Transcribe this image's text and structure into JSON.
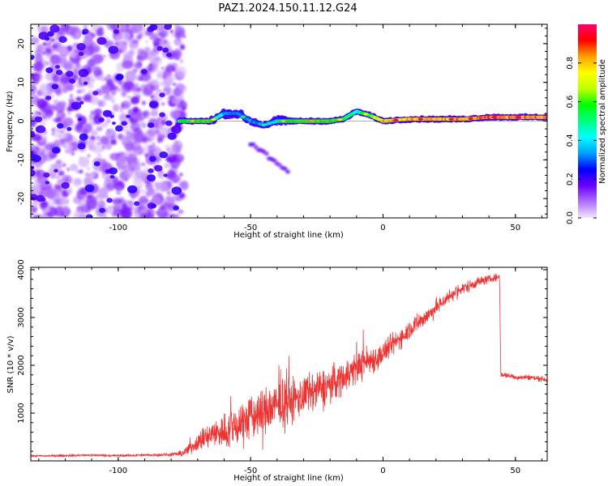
{
  "figure_title": "PAZ1.2024.150.11.12.G24",
  "chart_data": [
    {
      "type": "heatmap",
      "xlabel": "Height of straight line (km)",
      "ylabel": "Frequency (Hz)",
      "xlim": [
        -133,
        62
      ],
      "ylim": [
        -25,
        25
      ],
      "xticks": [
        -100,
        -50,
        0,
        50
      ],
      "yticks": [
        -20,
        -10,
        0,
        10,
        20
      ],
      "colorbar": {
        "label": "Normalized spectral amplitude",
        "ticks": [
          0.0,
          0.2,
          0.4,
          0.6,
          0.8
        ],
        "range": [
          0,
          1
        ],
        "colormap": [
          "#f2e6ff",
          "#b070ff",
          "#6a00ff",
          "#0000ff",
          "#00a0ff",
          "#00ffff",
          "#00ff80",
          "#00ff00",
          "#c0ff00",
          "#ffff00",
          "#ffa000",
          "#ff0000",
          "#ff006e"
        ]
      },
      "noise_region": {
        "x_range": [
          -133,
          -77
        ],
        "typical_amplitude": 0.1
      },
      "ridge": [
        {
          "x": -77,
          "freq": 0.0,
          "amp": 0.55
        },
        {
          "x": -65,
          "freq": 0.0,
          "amp": 0.6
        },
        {
          "x": -60,
          "freq": 2.0,
          "amp": 0.35
        },
        {
          "x": -55,
          "freq": 2.0,
          "amp": 0.3
        },
        {
          "x": -50,
          "freq": 0.0,
          "amp": 0.35
        },
        {
          "x": -45,
          "freq": -1.0,
          "amp": 0.3
        },
        {
          "x": -40,
          "freq": 0.0,
          "amp": 0.45
        },
        {
          "x": -35,
          "freq": 0.0,
          "amp": 0.55
        },
        {
          "x": -30,
          "freq": 0.0,
          "amp": 0.6
        },
        {
          "x": -20,
          "freq": 0.0,
          "amp": 0.6
        },
        {
          "x": -15,
          "freq": 0.5,
          "amp": 0.55
        },
        {
          "x": -10,
          "freq": 2.5,
          "amp": 0.45
        },
        {
          "x": -5,
          "freq": 1.5,
          "amp": 0.55
        },
        {
          "x": 0,
          "freq": 0.0,
          "amp": 0.75
        },
        {
          "x": 10,
          "freq": 0.5,
          "amp": 0.8
        },
        {
          "x": 20,
          "freq": 0.5,
          "amp": 0.8
        },
        {
          "x": 30,
          "freq": 0.5,
          "amp": 0.8
        },
        {
          "x": 40,
          "freq": 1.0,
          "amp": 0.85
        },
        {
          "x": 50,
          "freq": 1.0,
          "amp": 0.85
        },
        {
          "x": 62,
          "freq": 1.0,
          "amp": 0.85
        }
      ],
      "tail_branch": [
        {
          "x": -50,
          "freq": -6.0
        },
        {
          "x": -45,
          "freq": -8.0
        },
        {
          "x": -40,
          "freq": -11.0
        },
        {
          "x": -35,
          "freq": -13.5
        }
      ]
    },
    {
      "type": "line",
      "xlabel": "Height of straight line (km)",
      "ylabel": "SNR (10 * v/v)",
      "xlim": [
        -133,
        62
      ],
      "ylim": [
        0,
        4050
      ],
      "xticks": [
        -100,
        -50,
        0,
        50
      ],
      "yticks": [
        1000,
        2000,
        3000,
        4000
      ],
      "color": "#ee3333",
      "series": [
        {
          "x": [
            -133,
            -120,
            -110,
            -100,
            -90,
            -80,
            -76,
            -72,
            -70,
            -66,
            -62,
            -58,
            -54,
            -50,
            -46,
            -42,
            -38,
            -35,
            -33,
            -30,
            -26,
            -22,
            -18,
            -14,
            -10,
            -6,
            -2,
            0,
            4,
            8,
            12,
            16,
            20,
            24,
            28,
            32,
            36,
            40,
            44,
            44.5,
            46,
            50,
            55,
            62
          ],
          "values": [
            100,
            110,
            120,
            110,
            120,
            130,
            150,
            300,
            400,
            500,
            600,
            650,
            800,
            900,
            1000,
            1100,
            1200,
            1250,
            1300,
            1350,
            1450,
            1550,
            1650,
            1800,
            1950,
            2100,
            2150,
            2250,
            2450,
            2650,
            2850,
            3000,
            3200,
            3400,
            3550,
            3650,
            3750,
            3800,
            3850,
            1800,
            1800,
            1750,
            1750,
            1700
          ],
          "noise_amplitude": [
            30,
            40,
            40,
            40,
            40,
            50,
            100,
            200,
            250,
            400,
            500,
            600,
            700,
            700,
            750,
            750,
            750,
            700,
            650,
            600,
            600,
            550,
            550,
            500,
            500,
            450,
            400,
            350,
            350,
            300,
            300,
            250,
            250,
            220,
            200,
            180,
            150,
            120,
            100,
            80,
            80,
            80,
            80,
            80
          ]
        }
      ]
    }
  ]
}
